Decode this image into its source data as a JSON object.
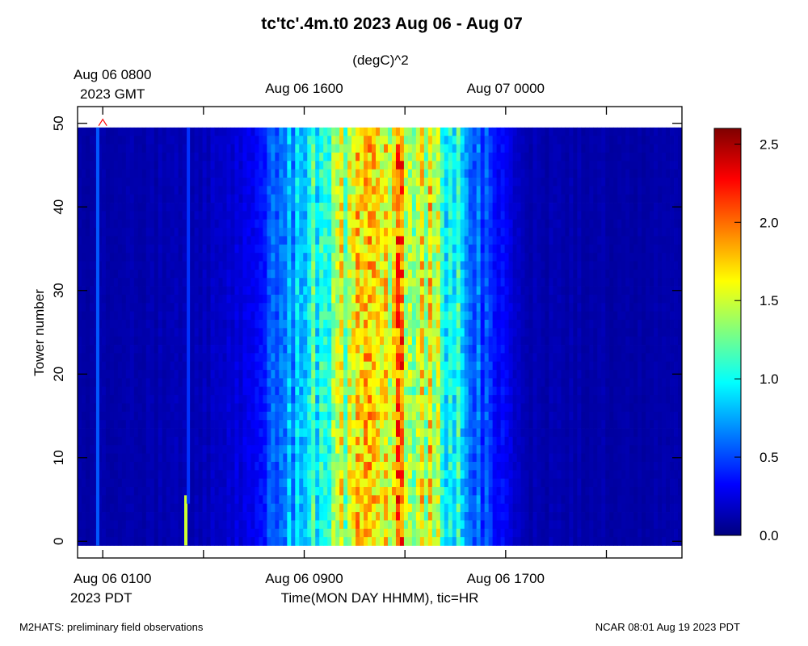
{
  "chart_data": {
    "type": "heatmap",
    "title": "tc'tc'.4m.t0 2023 Aug 06 - Aug 07",
    "units": "(degC)^2",
    "xlabel": "Time(MON DAY HHMM), tic=HR",
    "ylabel": "Tower number",
    "top_axis_labels": [
      {
        "lines": [
          "Aug 06 0800",
          "2023 GMT"
        ],
        "hour_pdt": 1
      },
      {
        "lines": [
          "Aug 06 1600"
        ],
        "hour_pdt": 9
      },
      {
        "lines": [
          "Aug 07 0000"
        ],
        "hour_pdt": 17
      }
    ],
    "bottom_axis_labels": [
      {
        "lines": [
          "Aug 06 0100",
          "2023 PDT"
        ],
        "hour_pdt": 1
      },
      {
        "lines": [
          "Aug 06 0900"
        ],
        "hour_pdt": 9
      },
      {
        "lines": [
          "Aug 06 1700"
        ],
        "hour_pdt": 17
      }
    ],
    "x_major_tick_hours_pdt": [
      1,
      5,
      9,
      13,
      17,
      21
    ],
    "xlim_hours_pdt": [
      0,
      24
    ],
    "ylim": [
      -2,
      52
    ],
    "y_ticks": [
      0,
      10,
      20,
      30,
      40,
      50
    ],
    "y_data_range": [
      0,
      49
    ],
    "colorbar": {
      "min": 0.0,
      "max": 2.6,
      "ticks": [
        "0.0",
        "0.5",
        "1.0",
        "1.5",
        "2.0",
        "2.5"
      ],
      "tick_values": [
        0.0,
        0.5,
        1.0,
        1.5,
        2.0,
        2.5
      ],
      "colormap": "jet"
    },
    "profile_hours_pdt": [
      0,
      3,
      5,
      7,
      8,
      9,
      10,
      11,
      12,
      13,
      14,
      15,
      16,
      17,
      18,
      24
    ],
    "profile_values": [
      0.1,
      0.12,
      0.15,
      0.3,
      0.6,
      0.95,
      1.2,
      1.55,
      1.9,
      1.75,
      1.45,
      1.0,
      0.55,
      0.25,
      0.12,
      0.1
    ],
    "features": [
      {
        "name": "stripe",
        "hour_pdt": 0.8,
        "value": 0.55,
        "towers": [
          0,
          49
        ]
      },
      {
        "name": "spike",
        "hour_pdt": 4.3,
        "value": 1.5,
        "towers": [
          0,
          5
        ]
      },
      {
        "name": "faint-stripe",
        "hour_pdt": 4.4,
        "value": 0.45,
        "towers": [
          5,
          49
        ]
      }
    ],
    "marker": {
      "symbol": "^",
      "color": "#ff0000",
      "hour_pdt": 1,
      "tower": 50
    }
  },
  "footer": {
    "left": "M2HATS: preliminary field observations",
    "right": "NCAR 08:01 Aug 19 2023 PDT"
  }
}
